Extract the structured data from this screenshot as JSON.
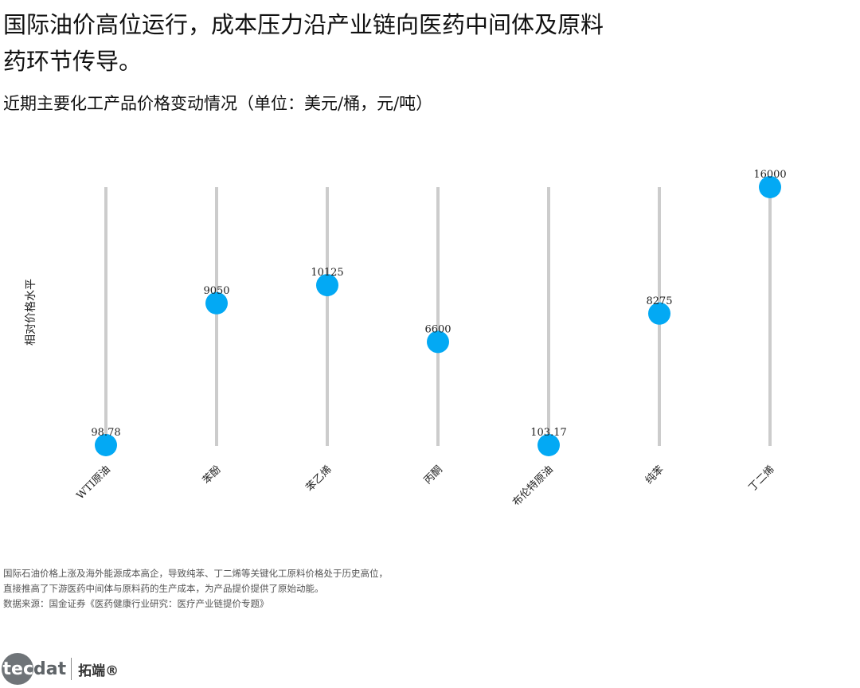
{
  "header": {
    "title": "国际油价高位运行，成本压力沿产业链向医药中间体及原料药环节传导。",
    "subtitle": "近期主要化工产品价格变动情况（单位：美元/桶，元/吨）"
  },
  "chart_data": {
    "type": "scatter",
    "style": "lollipop",
    "title": "近期主要化工产品价格变动情况（单位：美元/桶，元/吨）",
    "ylabel": "相对价格水平",
    "xlabel": "",
    "categories": [
      "WTI原油",
      "苯酚",
      "苯乙烯",
      "丙酮",
      "布伦特原油",
      "纯苯",
      "丁二烯"
    ],
    "values": [
      98.78,
      9050,
      10125,
      6600,
      103.17,
      8275,
      16000
    ],
    "value_labels": [
      "98.78",
      "9050",
      "10125",
      "6600",
      "103.17",
      "8275",
      "16000"
    ],
    "relative_level": [
      0,
      0.55,
      0.62,
      0.4,
      0,
      0.51,
      1
    ],
    "grid": false,
    "colors": {
      "marker": "#03a9f4",
      "stem": "#cccccc"
    }
  },
  "notes": {
    "line1": "国际石油价格上涨及海外能源成本高企，导致纯苯、丁二烯等关键化工原料价格处于历史高位，",
    "line2": "直接推高了下游医药中间体与原料药的生产成本，为产品提价提供了原始动能。",
    "source": "数据来源：国金证券《医药健康行业研究：医疗产业链提价专题》"
  },
  "footer": {
    "logo_circle": "tec",
    "logo_word": "dat",
    "logo_cn": "拓端®"
  }
}
